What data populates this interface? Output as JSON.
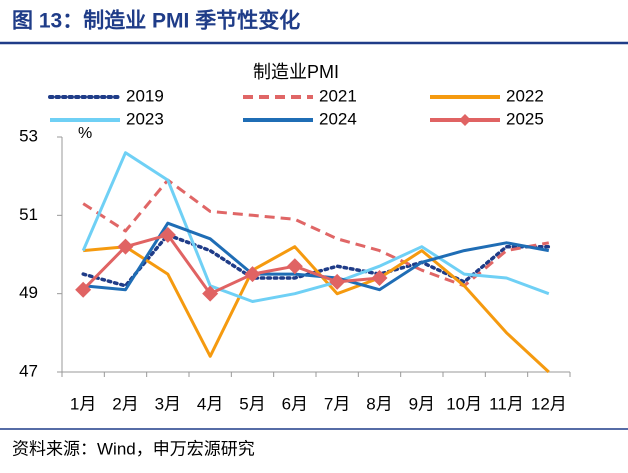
{
  "chart_data": {
    "type": "line",
    "figure_title": "图 13：制造业 PMI 季节性变化",
    "title": "制造业PMI",
    "y_unit": "%",
    "source": "资料来源：Wind，申万宏源研究",
    "categories": [
      "1月",
      "2月",
      "3月",
      "4月",
      "5月",
      "6月",
      "7月",
      "8月",
      "9月",
      "10月",
      "11月",
      "12月"
    ],
    "ylim": [
      47,
      53
    ],
    "yticks": [
      47,
      49,
      51,
      53
    ],
    "grid": false,
    "legend": "top",
    "series": [
      {
        "name": "2019",
        "color": "#1f3c88",
        "dash": "dotted",
        "values": [
          49.5,
          49.2,
          50.5,
          50.1,
          49.4,
          49.4,
          49.7,
          49.5,
          49.8,
          49.3,
          50.2,
          50.2
        ]
      },
      {
        "name": "2021",
        "color": "#e06666",
        "dash": "dashed",
        "values": [
          51.3,
          50.6,
          51.9,
          51.1,
          51.0,
          50.9,
          50.4,
          50.1,
          49.6,
          49.2,
          50.1,
          50.3
        ]
      },
      {
        "name": "2022",
        "color": "#f59a0f",
        "dash": "solid",
        "values": [
          50.1,
          50.2,
          49.5,
          47.4,
          49.6,
          50.2,
          49.0,
          49.4,
          50.1,
          49.2,
          48.0,
          47.0
        ]
      },
      {
        "name": "2023",
        "color": "#6fd0f5",
        "dash": "solid",
        "values": [
          50.1,
          52.6,
          51.9,
          49.2,
          48.8,
          49.0,
          49.3,
          49.7,
          50.2,
          49.5,
          49.4,
          49.0
        ]
      },
      {
        "name": "2024",
        "color": "#1f6db5",
        "dash": "solid",
        "values": [
          49.2,
          49.1,
          50.8,
          50.4,
          49.5,
          49.5,
          49.4,
          49.1,
          49.8,
          50.1,
          50.3,
          50.1
        ]
      },
      {
        "name": "2025",
        "color": "#e06363",
        "dash": "solid",
        "marker": "diamond",
        "values": [
          49.1,
          50.2,
          50.5,
          49.0,
          49.5,
          49.7,
          49.3,
          49.4,
          null,
          null,
          null,
          null
        ]
      }
    ]
  }
}
